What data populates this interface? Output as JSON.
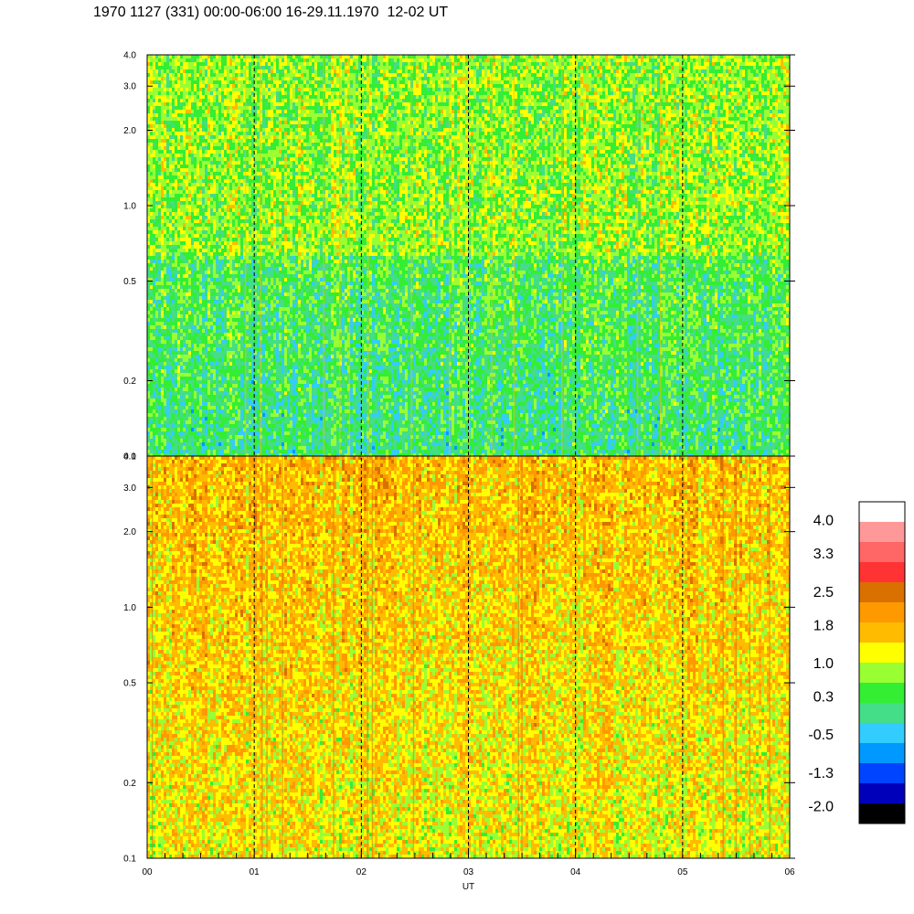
{
  "title": "1970 1127 (331) 00:00-06:00 16-29.11.1970  12-02 UT",
  "chart_data": [
    {
      "type": "heatmap",
      "panel": "upper",
      "x_range_hours": [
        0,
        6
      ],
      "y_scale": "log",
      "ylim": [
        0.1,
        4.0
      ],
      "y_ticks": [
        "0.1",
        "0.2",
        "0.5",
        "1.0",
        "2.0",
        "3.0",
        "4.0"
      ],
      "y_tick_values": [
        0.1,
        0.2,
        0.5,
        1.0,
        2.0,
        3.0,
        4.0
      ],
      "dominant_level_high_freq": 0.6,
      "dominant_level_low_freq": 0.1,
      "vertical_dashed_lines_at_hours": [
        1,
        2,
        3,
        4,
        5
      ]
    },
    {
      "type": "heatmap",
      "panel": "lower",
      "x_range_hours": [
        0,
        6
      ],
      "y_scale": "log",
      "ylim": [
        0.1,
        4.0
      ],
      "y_ticks": [
        "0.1",
        "0.2",
        "0.5",
        "1.0",
        "2.0",
        "3.0",
        "4.0"
      ],
      "y_tick_values": [
        0.1,
        0.2,
        0.5,
        1.0,
        2.0,
        3.0,
        4.0
      ],
      "x_ticks": [
        "00",
        "01",
        "02",
        "03",
        "04",
        "05",
        "06"
      ],
      "x_tick_values": [
        0,
        1,
        2,
        3,
        4,
        5,
        6
      ],
      "xlabel": "UT",
      "dominant_level_high_freq": 1.7,
      "dominant_level_low_freq": 1.2,
      "vertical_dashed_lines_at_hours": [
        1,
        2,
        3,
        4,
        5
      ]
    }
  ],
  "colorbar": {
    "labels": [
      "4.0",
      "3.3",
      "2.5",
      "1.8",
      "1.0",
      "0.3",
      "-0.5",
      "-1.3",
      "-2.0"
    ],
    "label_values": [
      4.0,
      3.3,
      2.5,
      1.8,
      1.0,
      0.3,
      -0.5,
      -1.3,
      -2.0
    ],
    "colors_top_to_bottom": [
      "#ffffff",
      "#ff9999",
      "#ff6666",
      "#ff3333",
      "#d97000",
      "#ff9900",
      "#ffbb00",
      "#ffff00",
      "#99ff33",
      "#33ee33",
      "#44dd88",
      "#33ccff",
      "#0099ff",
      "#0044ff",
      "#0000bb",
      "#000000"
    ]
  }
}
